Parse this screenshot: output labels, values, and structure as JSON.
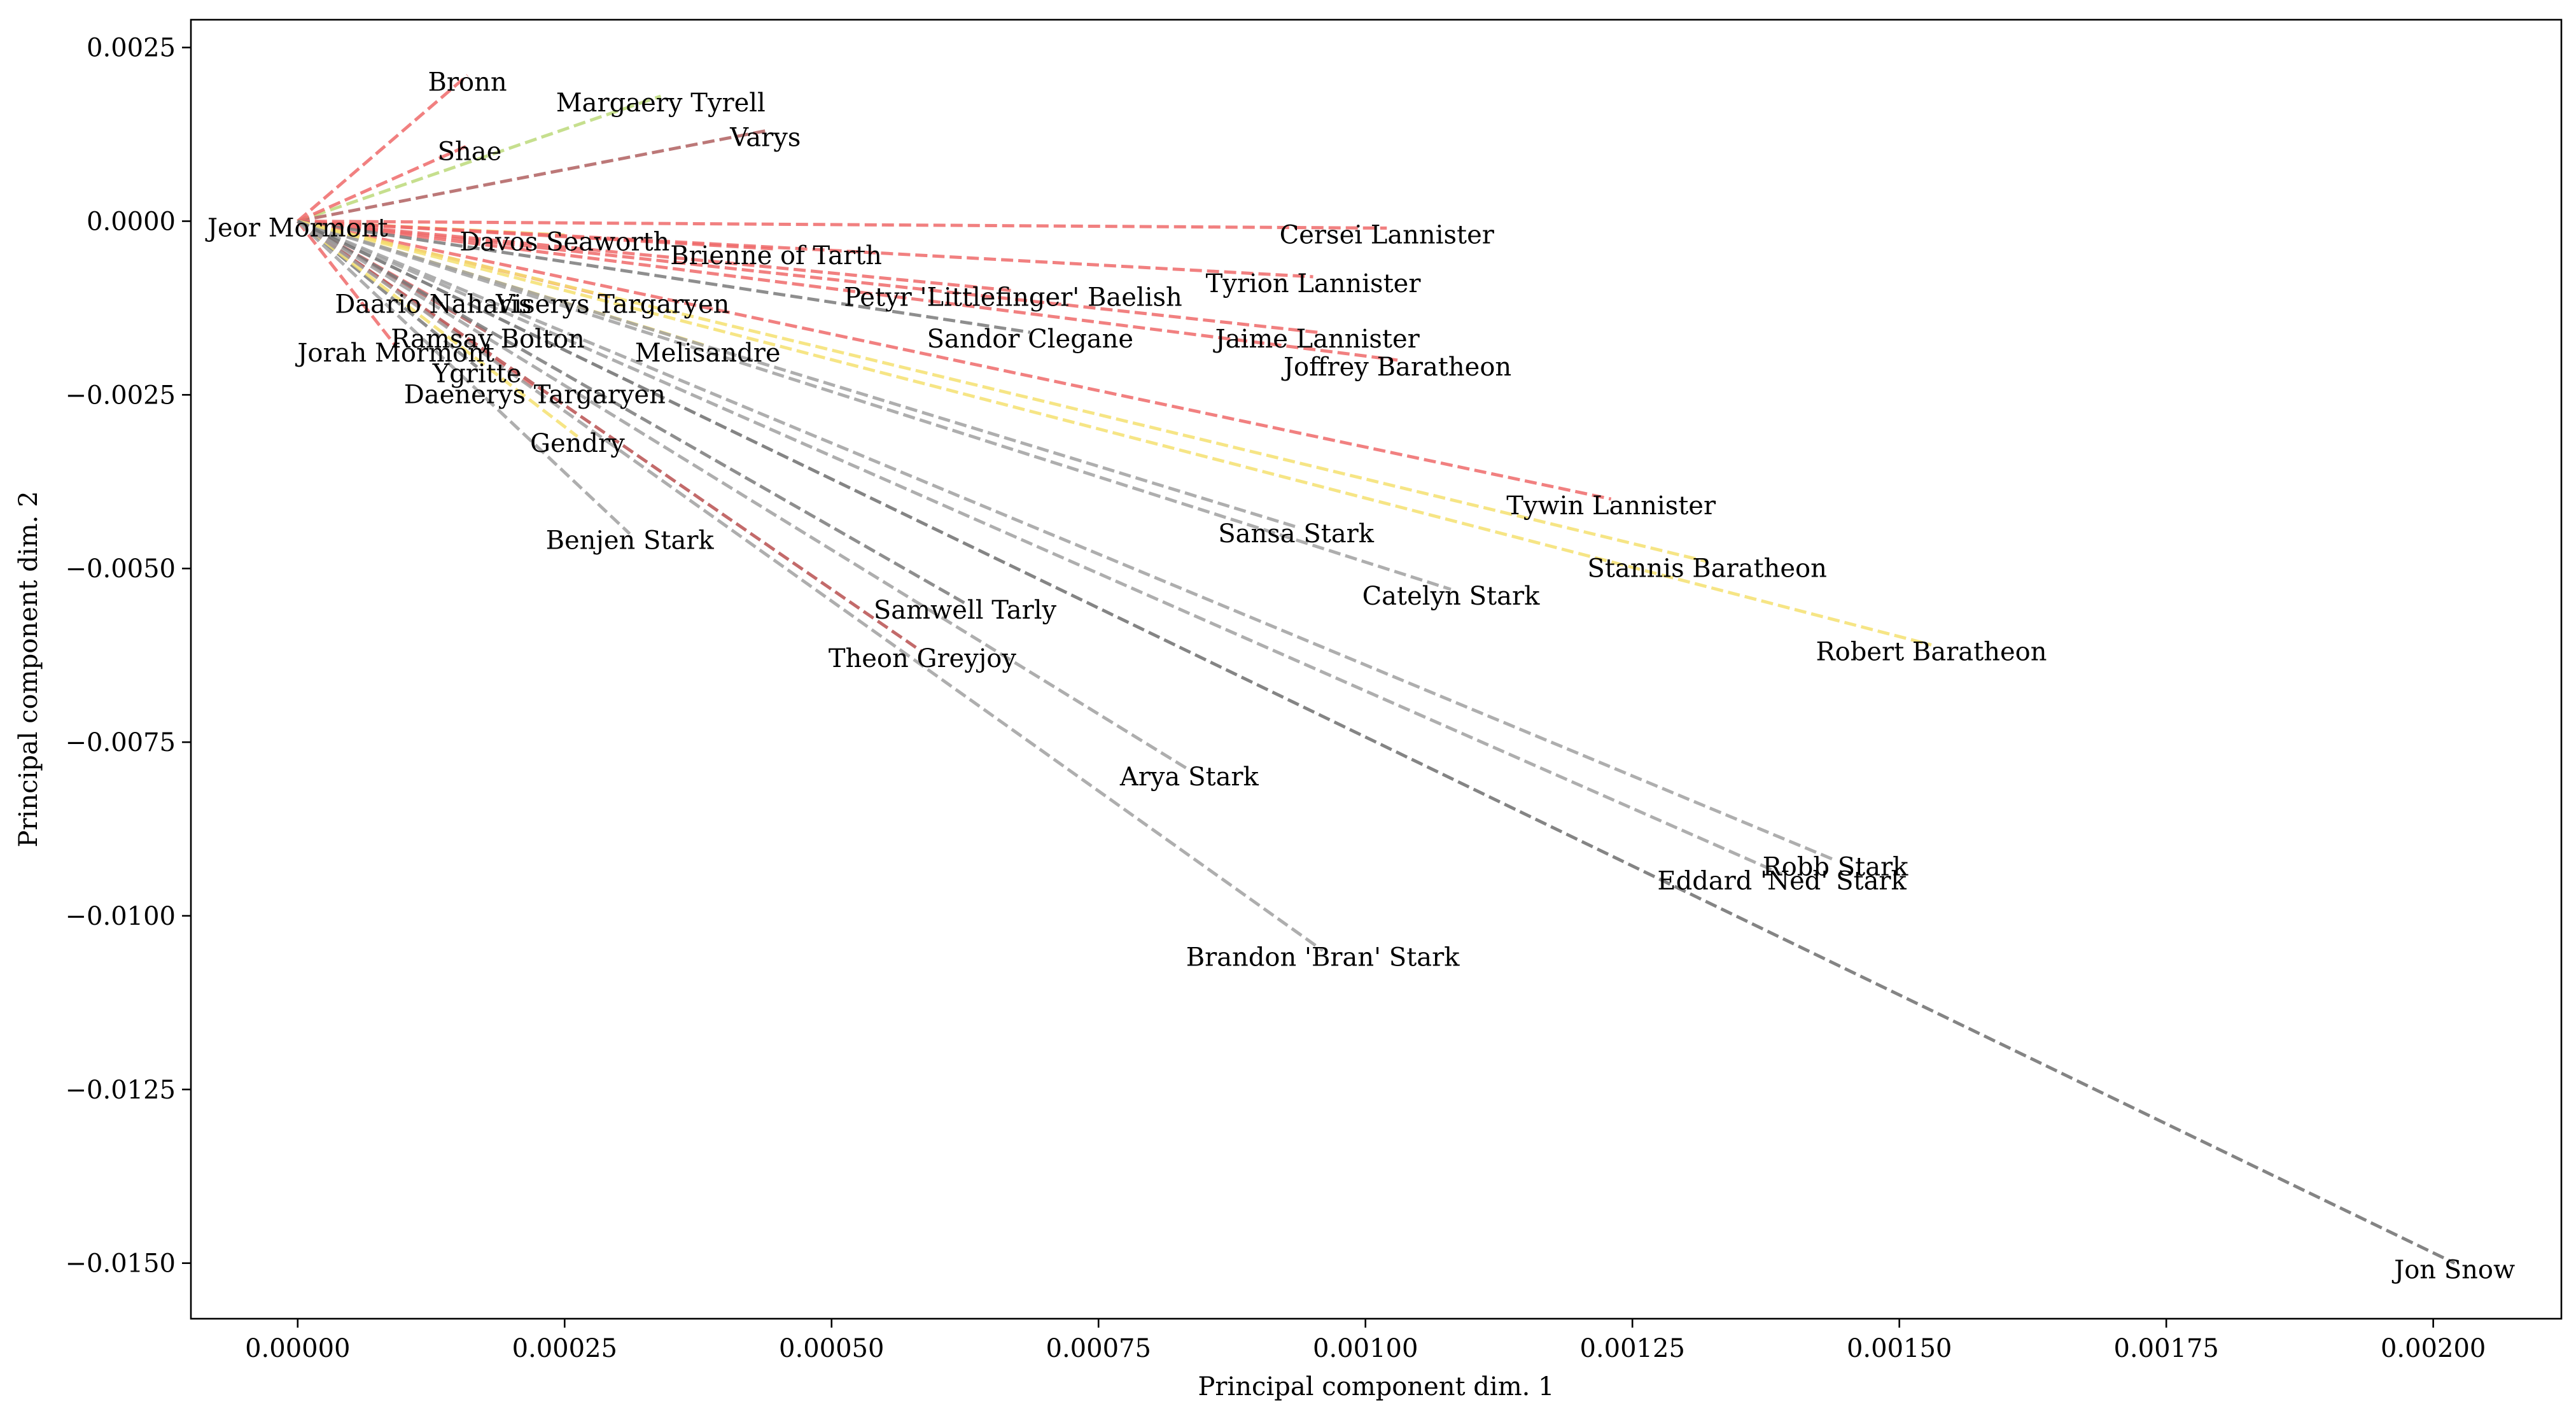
{
  "chart_data": {
    "type": "line",
    "title": "",
    "xlabel": "Principal component dim. 1",
    "ylabel": "Principal component dim. 2",
    "xlim": [
      -0.0001,
      0.00212
    ],
    "ylim": [
      -0.0158,
      0.0029
    ],
    "grid": false,
    "origin": [
      0.0,
      0.0
    ],
    "x_ticks": [
      {
        "value": 0.0,
        "label": "0.00000"
      },
      {
        "value": 0.00025,
        "label": "0.00025"
      },
      {
        "value": 0.0005,
        "label": "0.00050"
      },
      {
        "value": 0.00075,
        "label": "0.00075"
      },
      {
        "value": 0.001,
        "label": "0.00100"
      },
      {
        "value": 0.00125,
        "label": "0.00125"
      },
      {
        "value": 0.0015,
        "label": "0.00150"
      },
      {
        "value": 0.00175,
        "label": "0.00175"
      },
      {
        "value": 0.002,
        "label": "0.00200"
      }
    ],
    "y_ticks": [
      {
        "value": 0.0025,
        "label": "0.0025"
      },
      {
        "value": 0.0,
        "label": "0.0000"
      },
      {
        "value": -0.0025,
        "label": "−0.0025"
      },
      {
        "value": -0.005,
        "label": "−0.0050"
      },
      {
        "value": -0.0075,
        "label": "−0.0075"
      },
      {
        "value": -0.01,
        "label": "−0.0100"
      },
      {
        "value": -0.0125,
        "label": "−0.0125"
      },
      {
        "value": -0.015,
        "label": "−0.0150"
      }
    ],
    "points": [
      {
        "label": "Bronn",
        "x": 0.000159,
        "y": 0.0021,
        "color": "#ef6a6a"
      },
      {
        "label": "Margaery Tyrell",
        "x": 0.00034,
        "y": 0.0018,
        "color": "#bcd97a"
      },
      {
        "label": "Varys",
        "x": 0.000438,
        "y": 0.0013,
        "color": "#b06060"
      },
      {
        "label": "Shae",
        "x": 0.000161,
        "y": 0.0011,
        "color": "#ef6a6a"
      },
      {
        "label": "Jeor Mormont",
        "x": 0.0,
        "y": 0.0,
        "color": "#7a7a7a"
      },
      {
        "label": "Davos Seaworth",
        "x": 0.00025,
        "y": -0.0002,
        "color": "#f5e070"
      },
      {
        "label": "Cersei Lannister",
        "x": 0.00102,
        "y": -0.0001,
        "color": "#ef6a6a"
      },
      {
        "label": "Brienne of Tarth",
        "x": 0.000448,
        "y": -0.0004,
        "color": "#ef6a6a"
      },
      {
        "label": "Tyrion Lannister",
        "x": 0.000951,
        "y": -0.0008,
        "color": "#ef6a6a"
      },
      {
        "label": "Petyr 'Littlefinger' Baelish",
        "x": 0.00067,
        "y": -0.001,
        "color": "#ef6a6a"
      },
      {
        "label": "Viserys Targaryen",
        "x": 0.000295,
        "y": -0.0011,
        "color": "#ef6a6a"
      },
      {
        "label": "Daario Naharis",
        "x": 0.000127,
        "y": -0.0011,
        "color": "#ef6a6a"
      },
      {
        "label": "Jaime Lannister",
        "x": 0.000955,
        "y": -0.0016,
        "color": "#ef6a6a"
      },
      {
        "label": "Joffrey Baratheon",
        "x": 0.00103,
        "y": -0.002,
        "color": "#ef6a6a"
      },
      {
        "label": "Sandor Clegane",
        "x": 0.000686,
        "y": -0.0016,
        "color": "#7a7a7a"
      },
      {
        "label": "Melisandre",
        "x": 0.000384,
        "y": -0.0018,
        "color": "#f5e070"
      },
      {
        "label": "Ramsay Bolton",
        "x": 0.000178,
        "y": -0.0016,
        "color": "#b06060"
      },
      {
        "label": "Jorah Mormont",
        "x": 9.2e-05,
        "y": -0.0018,
        "color": "#ef6a6a"
      },
      {
        "label": "Ygritte",
        "x": 0.000168,
        "y": -0.0021,
        "color": "#7a7a7a"
      },
      {
        "label": "Daenerys Targaryen",
        "x": 0.000222,
        "y": -0.0024,
        "color": "#ef6a6a"
      },
      {
        "label": "Gendry",
        "x": 0.000262,
        "y": -0.0031,
        "color": "#f5e070"
      },
      {
        "label": "Tywin Lannister",
        "x": 0.00123,
        "y": -0.004,
        "color": "#ef6a6a"
      },
      {
        "label": "Sansa Stark",
        "x": 0.000935,
        "y": -0.0044,
        "color": "#a0a0a0"
      },
      {
        "label": "Stannis Baratheon",
        "x": 0.00132,
        "y": -0.0049,
        "color": "#f5e070"
      },
      {
        "label": "Catelyn Stark",
        "x": 0.00108,
        "y": -0.0053,
        "color": "#a0a0a0"
      },
      {
        "label": "Robert Baratheon",
        "x": 0.00153,
        "y": -0.0061,
        "color": "#f5e070"
      },
      {
        "label": "Benjen Stark",
        "x": 0.000311,
        "y": -0.0045,
        "color": "#a0a0a0"
      },
      {
        "label": "Samwell Tarly",
        "x": 0.000625,
        "y": -0.0055,
        "color": "#7a7a7a"
      },
      {
        "label": "Theon Greyjoy",
        "x": 0.000585,
        "y": -0.0062,
        "color": "#b85050"
      },
      {
        "label": "Arya Stark",
        "x": 0.000835,
        "y": -0.0079,
        "color": "#a0a0a0"
      },
      {
        "label": "Robb Stark",
        "x": 0.00144,
        "y": -0.0092,
        "color": "#a0a0a0"
      },
      {
        "label": "Eddard 'Ned' Stark",
        "x": 0.00139,
        "y": -0.0094,
        "color": "#a0a0a0"
      },
      {
        "label": "Brandon 'Bran' Stark",
        "x": 0.00096,
        "y": -0.0105,
        "color": "#a0a0a0"
      },
      {
        "label": "Jon Snow",
        "x": 0.00202,
        "y": -0.015,
        "color": "#6e6e6e"
      }
    ]
  }
}
